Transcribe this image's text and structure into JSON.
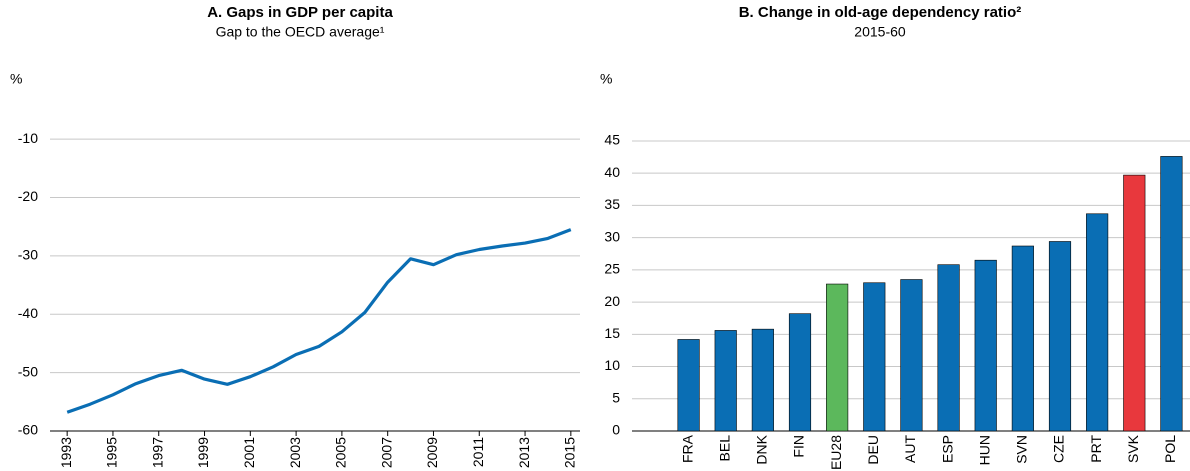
{
  "chart_data": [
    {
      "type": "line",
      "title": "A. Gaps in GDP per capita",
      "subtitle": "Gap to the OECD average¹",
      "y_label": "%",
      "x": [
        1993,
        1994,
        1995,
        1996,
        1997,
        1998,
        1999,
        2000,
        2001,
        2002,
        2003,
        2004,
        2005,
        2006,
        2007,
        2008,
        2009,
        2010,
        2011,
        2012,
        2013,
        2014,
        2015
      ],
      "values": [
        -56.8,
        -55.4,
        -53.8,
        -51.9,
        -50.5,
        -49.6,
        -51.1,
        -52.0,
        -50.7,
        -49.0,
        -46.9,
        -45.5,
        -43.0,
        -39.7,
        -34.5,
        -30.5,
        -31.5,
        -29.8,
        -28.9,
        -28.3,
        -27.8,
        -27.0,
        -25.5
      ],
      "color": "#0a6eb4",
      "xlim": [
        1992.6,
        2015.4
      ],
      "xticks": [
        1993,
        1995,
        1997,
        1999,
        2001,
        2003,
        2005,
        2007,
        2009,
        2011,
        2013,
        2015
      ],
      "ylim": [
        -60,
        -5
      ],
      "yticks": [
        -60,
        -50,
        -40,
        -30,
        -20,
        -10
      ],
      "grid": true
    },
    {
      "type": "bar",
      "title": "B. Change in old-age dependency ratio²",
      "subtitle": "2015-60",
      "y_label": "%",
      "categories": [
        "FRA",
        "BEL",
        "DNK",
        "FIN",
        "EU28",
        "DEU",
        "AUT",
        "ESP",
        "HUN",
        "SVN",
        "CZE",
        "PRT",
        "SVK",
        "POL"
      ],
      "values": [
        14.2,
        15.6,
        15.8,
        18.2,
        22.8,
        23.0,
        23.5,
        25.8,
        26.5,
        28.7,
        29.4,
        33.7,
        39.7,
        42.6
      ],
      "colors": [
        "#0a6eb4",
        "#0a6eb4",
        "#0a6eb4",
        "#0a6eb4",
        "#5cb85c",
        "#0a6eb4",
        "#0a6eb4",
        "#0a6eb4",
        "#0a6eb4",
        "#0a6eb4",
        "#0a6eb4",
        "#0a6eb4",
        "#e8383d",
        "#0a6eb4"
      ],
      "ylim": [
        0,
        49.8
      ],
      "yticks": [
        0,
        5,
        10,
        15,
        20,
        25,
        30,
        35,
        40,
        45
      ],
      "grid": true
    }
  ]
}
